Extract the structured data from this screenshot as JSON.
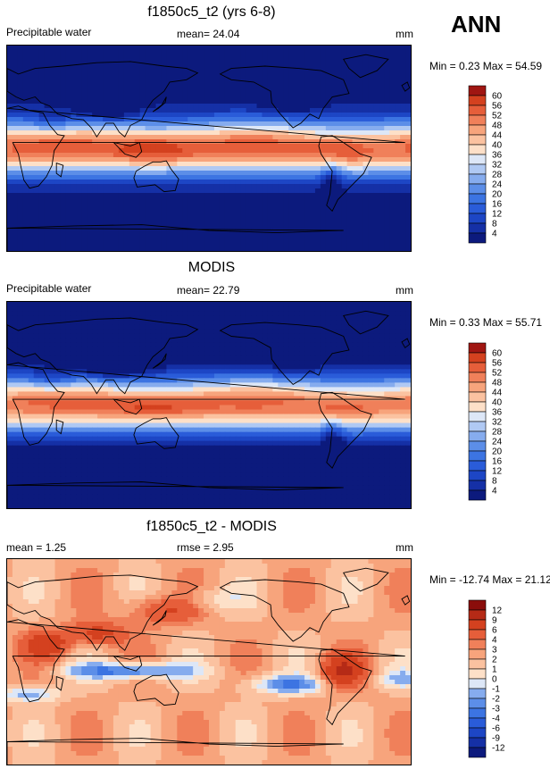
{
  "header": {
    "season": "ANN"
  },
  "panels": [
    {
      "title": "f1850c5_t2 (yrs 6-8)",
      "left_label": "Precipitable water",
      "mid_label": "mean=  24.04",
      "units": "mm",
      "minmax": "Min =  0.23 Max =  54.59",
      "field": "abs",
      "levels": [
        "4",
        "8",
        "12",
        "16",
        "20",
        "24",
        "28",
        "32",
        "36",
        "40",
        "44",
        "48",
        "52",
        "56",
        "60"
      ],
      "colors": [
        "#0c1a7d",
        "#1530a6",
        "#1d46c5",
        "#2a5cd9",
        "#3c74e2",
        "#5c8ee8",
        "#86acee",
        "#b0c9f3",
        "#dde7f7",
        "#fde0c8",
        "#fbc2a0",
        "#f7a47c",
        "#f0805a",
        "#e65e3a",
        "#d4411f",
        "#a01612"
      ]
    },
    {
      "title": "MODIS",
      "left_label": "Precipitable water",
      "mid_label": "mean=  22.79",
      "units": "mm",
      "minmax": "Min =  0.33 Max =  55.71",
      "field": "abs",
      "levels": [
        "4",
        "8",
        "12",
        "16",
        "20",
        "24",
        "28",
        "32",
        "36",
        "40",
        "44",
        "48",
        "52",
        "56",
        "60"
      ],
      "colors": [
        "#0c1a7d",
        "#1530a6",
        "#1d46c5",
        "#2a5cd9",
        "#3c74e2",
        "#5c8ee8",
        "#86acee",
        "#b0c9f3",
        "#dde7f7",
        "#fde0c8",
        "#fbc2a0",
        "#f7a47c",
        "#f0805a",
        "#e65e3a",
        "#d4411f",
        "#a01612"
      ]
    },
    {
      "title": "f1850c5_t2 - MODIS",
      "left_label": "mean =   1.25",
      "mid_label": "rmse =   2.95",
      "units": "mm",
      "minmax": "Min = -12.74 Max =  21.12",
      "field": "diff",
      "levels": [
        "-12",
        "-9",
        "-6",
        "-4",
        "-3",
        "-2",
        "-1",
        "0",
        "1",
        "2",
        "3",
        "4",
        "6",
        "9",
        "12"
      ],
      "colors": [
        "#0c1a7d",
        "#1530a6",
        "#1d46c5",
        "#2a5cd9",
        "#3c74e2",
        "#5c8ee8",
        "#86acee",
        "#dde7f7",
        "#fde0c8",
        "#fbc2a0",
        "#f7a47c",
        "#f0805a",
        "#e65e3a",
        "#d4411f",
        "#b52a16",
        "#8a0d0b"
      ]
    }
  ],
  "chart_data": [
    {
      "type": "heatmap",
      "title": "f1850c5_t2 (yrs 6-8)",
      "variable": "Precipitable water",
      "units": "mm",
      "mean": 24.04,
      "min": 0.23,
      "max": 54.59,
      "contour_levels": [
        4,
        8,
        12,
        16,
        20,
        24,
        28,
        32,
        36,
        40,
        44,
        48,
        52,
        56,
        60
      ]
    },
    {
      "type": "heatmap",
      "title": "MODIS",
      "variable": "Precipitable water",
      "units": "mm",
      "mean": 22.79,
      "min": 0.33,
      "max": 55.71,
      "contour_levels": [
        4,
        8,
        12,
        16,
        20,
        24,
        28,
        32,
        36,
        40,
        44,
        48,
        52,
        56,
        60
      ]
    },
    {
      "type": "heatmap",
      "title": "f1850c5_t2 - MODIS",
      "units": "mm",
      "mean": 1.25,
      "rmse": 2.95,
      "min": -12.74,
      "max": 21.12,
      "contour_levels": [
        -12,
        -9,
        -6,
        -4,
        -3,
        -2,
        -1,
        0,
        1,
        2,
        3,
        4,
        6,
        9,
        12
      ]
    }
  ]
}
